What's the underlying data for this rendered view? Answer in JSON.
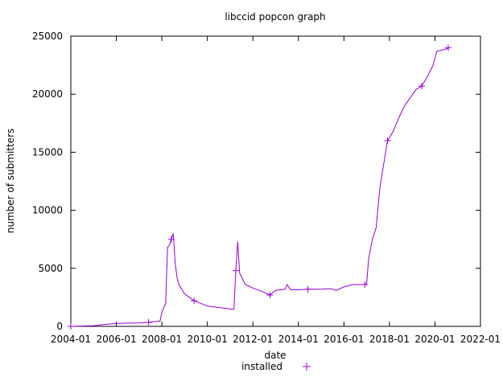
{
  "chart_data": {
    "type": "line",
    "title": "libccid popcon graph",
    "xlabel": "date",
    "ylabel": "number of submitters",
    "x_ticks": [
      "2004-01",
      "2006-01",
      "2008-01",
      "2010-01",
      "2012-01",
      "2014-01",
      "2016-01",
      "2018-01",
      "2020-01",
      "2022-01"
    ],
    "y_ticks": [
      "0",
      "5000",
      "10000",
      "15000",
      "20000",
      "25000"
    ],
    "ylim": [
      0,
      25000
    ],
    "xlim": [
      "2004-01",
      "2022-01"
    ],
    "grid": false,
    "legend_position": "bottom-center",
    "series": [
      {
        "name": "installed",
        "color": "#9400d3",
        "marker": "plus",
        "x": [
          "2004-01",
          "2005-01",
          "2005-06",
          "2006-01",
          "2006-06",
          "2007-01",
          "2007-06",
          "2007-12",
          "2008-01",
          "2008-03",
          "2008-04",
          "2008-05",
          "2008-06",
          "2008-07",
          "2008-08",
          "2008-09",
          "2008-10",
          "2009-01",
          "2009-06",
          "2010-01",
          "2010-06",
          "2011-01",
          "2011-02",
          "2011-03",
          "2011-04",
          "2011-05",
          "2011-06",
          "2011-09",
          "2012-01",
          "2012-06",
          "2012-10",
          "2013-01",
          "2013-06",
          "2013-07",
          "2013-09",
          "2014-01",
          "2014-06",
          "2015-01",
          "2015-06",
          "2015-09",
          "2016-01",
          "2016-06",
          "2016-12",
          "2017-01",
          "2017-02",
          "2017-04",
          "2017-06",
          "2017-08",
          "2017-12",
          "2018-03",
          "2018-06",
          "2018-09",
          "2018-12",
          "2019-03",
          "2019-06",
          "2019-09",
          "2019-12",
          "2020-02",
          "2020-05",
          "2020-07",
          "2020-08"
        ],
        "y": [
          0,
          50,
          150,
          250,
          280,
          300,
          350,
          450,
          1200,
          2000,
          6800,
          7000,
          7500,
          8000,
          5500,
          4200,
          3600,
          2800,
          2200,
          1750,
          1650,
          1500,
          1450,
          1500,
          4800,
          7300,
          4600,
          3600,
          3300,
          3000,
          2700,
          3100,
          3200,
          3600,
          3150,
          3150,
          3200,
          3200,
          3250,
          3100,
          3400,
          3600,
          3600,
          3700,
          5800,
          7500,
          8500,
          12000,
          16000,
          16800,
          18000,
          19000,
          19700,
          20400,
          20700,
          21500,
          22500,
          23700,
          23800,
          23900,
          24000
        ]
      }
    ]
  }
}
